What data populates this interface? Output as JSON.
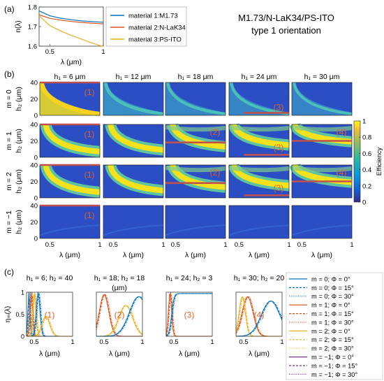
{
  "figure": {
    "title_line1": "M1.73/N-LaK34/PS-ITO",
    "title_line2": "type 1 orientation",
    "panel_labels": [
      "(a)",
      "(b)",
      "(c)"
    ]
  },
  "colors": {
    "m1_73": "#0072BD",
    "n_lak34": "#D95319",
    "ps_ito": "#EDB120",
    "purple": "#7E2F8E",
    "overlay": "#C0504D",
    "region_text": "#E0622A"
  },
  "chart_data": [
    {
      "id": "a",
      "type": "line",
      "xlabel": "λ (μm)",
      "ylabel": "n(λ)",
      "xlim": [
        0.4,
        1.0
      ],
      "ylim": [
        1.6,
        1.8
      ],
      "xticks": [
        "0.5",
        "1"
      ],
      "yticks": [
        "1.6",
        "1.7",
        "1.8"
      ],
      "legend_position": "right",
      "series": [
        {
          "name": "material 1:M1.73",
          "x": [
            0.4,
            0.5,
            0.6,
            0.7,
            0.8,
            0.9,
            1.0
          ],
          "values": [
            1.78,
            1.755,
            1.743,
            1.735,
            1.729,
            1.725,
            1.722
          ]
        },
        {
          "name": "material 2:N-LaK34",
          "x": [
            0.4,
            0.5,
            0.6,
            0.7,
            0.8,
            0.9,
            1.0
          ],
          "values": [
            1.76,
            1.742,
            1.733,
            1.726,
            1.721,
            1.717,
            1.714
          ]
        },
        {
          "name": "material 3:PS-ITO",
          "x": [
            0.4,
            0.5,
            0.6,
            0.7,
            0.8,
            0.9,
            1.0
          ],
          "values": [
            1.755,
            1.705,
            1.678,
            1.655,
            1.635,
            1.615,
            1.598
          ]
        }
      ]
    },
    {
      "id": "b",
      "type": "heatmap",
      "column_titles": [
        "h₁ = 6 μm",
        "h₁ = 12 μm",
        "h₁ = 18 μm",
        "h₁ = 24 μm",
        "h₁ = 30 μm"
      ],
      "row_titles": [
        "m = 0",
        "m = 1",
        "m = 2",
        "m = −1"
      ],
      "ylabel": "h₂ (μm)",
      "xlabel": "λ (μm)",
      "xlim": [
        0.4,
        1.0
      ],
      "ylim": [
        0,
        40
      ],
      "xticks": [
        "0.5",
        "1"
      ],
      "yticks": [
        "0",
        "20",
        "40"
      ],
      "colorbar_label": "Efficiency",
      "colorbar_ticks": [
        "0",
        "0.2",
        "0.4",
        "0.6",
        "0.8",
        "1"
      ],
      "colorbar_range": [
        0,
        1
      ],
      "region_markers": [
        {
          "row": 0,
          "col": 0,
          "label": "(1)",
          "h2": 40
        },
        {
          "row": 0,
          "col": 3,
          "label": "(3)",
          "h2": 3
        },
        {
          "row": 1,
          "col": 0,
          "label": "(1)",
          "h2": 40
        },
        {
          "row": 1,
          "col": 2,
          "label": "(2)",
          "h2": 18
        },
        {
          "row": 1,
          "col": 3,
          "label": "(3)",
          "h2": 3
        },
        {
          "row": 1,
          "col": 4,
          "label": "(4)",
          "h2": 20
        },
        {
          "row": 2,
          "col": 0,
          "label": "(1)",
          "h2": 40
        },
        {
          "row": 2,
          "col": 2,
          "label": "(2)",
          "h2": 18
        },
        {
          "row": 2,
          "col": 3,
          "label": "(3)",
          "h2": 3
        },
        {
          "row": 2,
          "col": 4,
          "label": "(4)",
          "h2": 20
        },
        {
          "row": 3,
          "col": 0,
          "label": "(1)",
          "h2": 40
        }
      ]
    },
    {
      "id": "c",
      "type": "line",
      "ylabel": "ηₘ(λ)",
      "xlabel": "λ (μm)",
      "xlim": [
        0.4,
        1.0
      ],
      "ylim": [
        0,
        1
      ],
      "xticks": [
        "0.5",
        "1"
      ],
      "yticks": [
        "0",
        "0.5",
        "1"
      ],
      "subplots": [
        {
          "title_line1": "h₁ = 6; h₂ = 40",
          "title_line2": "",
          "label": "(1)"
        },
        {
          "title_line1": "h₁ = 18; h₂ = 18",
          "title_line2": "(μm)",
          "label": "(2)"
        },
        {
          "title_line1": "h₁ = 24; h₂ = 3",
          "title_line2": "",
          "label": "(3)"
        },
        {
          "title_line1": "h₁ = 30; h₂ = 20",
          "title_line2": "",
          "label": "(4)"
        }
      ],
      "legend": [
        {
          "name": "m = 0; Φ = 0°",
          "color": "#0072BD",
          "dash": "solid"
        },
        {
          "name": "m = 0; Φ = 15°",
          "color": "#0072BD",
          "dash": "dashed"
        },
        {
          "name": "m = 0; Φ = 30°",
          "color": "#0072BD",
          "dash": "dotted"
        },
        {
          "name": "m = 1; Φ = 0°",
          "color": "#D95319",
          "dash": "solid"
        },
        {
          "name": "m = 1; Φ = 15°",
          "color": "#D95319",
          "dash": "dashed"
        },
        {
          "name": "m = 1; Φ = 30°",
          "color": "#D95319",
          "dash": "dotted"
        },
        {
          "name": "m = 2; Φ = 0°",
          "color": "#EDB120",
          "dash": "solid"
        },
        {
          "name": "m = 2; Φ = 15°",
          "color": "#EDB120",
          "dash": "dashed"
        },
        {
          "name": "m = 2; Φ = 30°",
          "color": "#EDB120",
          "dash": "dotted"
        },
        {
          "name": "m = −1; Φ = 0°",
          "color": "#7E2F8E",
          "dash": "solid"
        },
        {
          "name": "m = −1; Φ = 15°",
          "color": "#7E2F8E",
          "dash": "dashed"
        },
        {
          "name": "m = −1; Φ = 30°",
          "color": "#7E2F8E",
          "dash": "dotted"
        }
      ]
    }
  ]
}
